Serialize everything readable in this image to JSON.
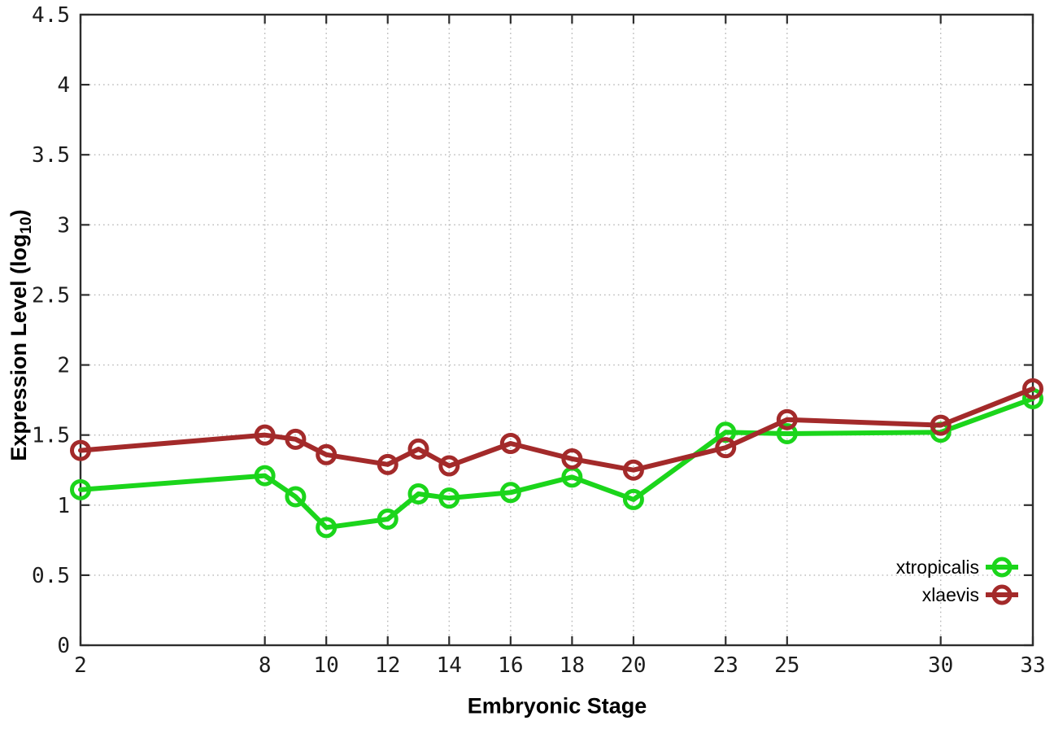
{
  "style": {
    "background": "#ffffff",
    "border_color": "#2d2d2d",
    "grid_color": "#b8b8b8",
    "tick_label_color": "#1c1c1c"
  },
  "chart_data": {
    "type": "line",
    "title": "",
    "xlabel": "Embryonic Stage",
    "ylabel": "Expression Level (log10)",
    "ylabel_parts": {
      "prefix": "Expression Level (log",
      "sub": "10",
      "suffix": ")"
    },
    "xlim": [
      2,
      33
    ],
    "ylim": [
      0,
      4.5
    ],
    "x_ticks": [
      2,
      8,
      10,
      12,
      14,
      16,
      18,
      20,
      23,
      25,
      30,
      33
    ],
    "y_ticks": [
      0,
      0.5,
      1,
      1.5,
      2,
      2.5,
      3,
      3.5,
      4,
      4.5
    ],
    "grid": true,
    "legend_position": "inside-bottom-right",
    "marker": "open-circle",
    "x": [
      2,
      8,
      9,
      10,
      12,
      13,
      14,
      16,
      18,
      20,
      23,
      25,
      30,
      33
    ],
    "series": [
      {
        "name": "xtropicalis",
        "color": "#1bd51b",
        "values": [
          1.11,
          1.21,
          1.06,
          0.84,
          0.9,
          1.08,
          1.05,
          1.09,
          1.2,
          1.04,
          1.52,
          1.51,
          1.52,
          1.76
        ]
      },
      {
        "name": "xlaevis",
        "color": "#a32a2a",
        "values": [
          1.39,
          1.5,
          1.47,
          1.36,
          1.29,
          1.4,
          1.28,
          1.44,
          1.33,
          1.25,
          1.41,
          1.61,
          1.57,
          1.83
        ]
      }
    ]
  }
}
